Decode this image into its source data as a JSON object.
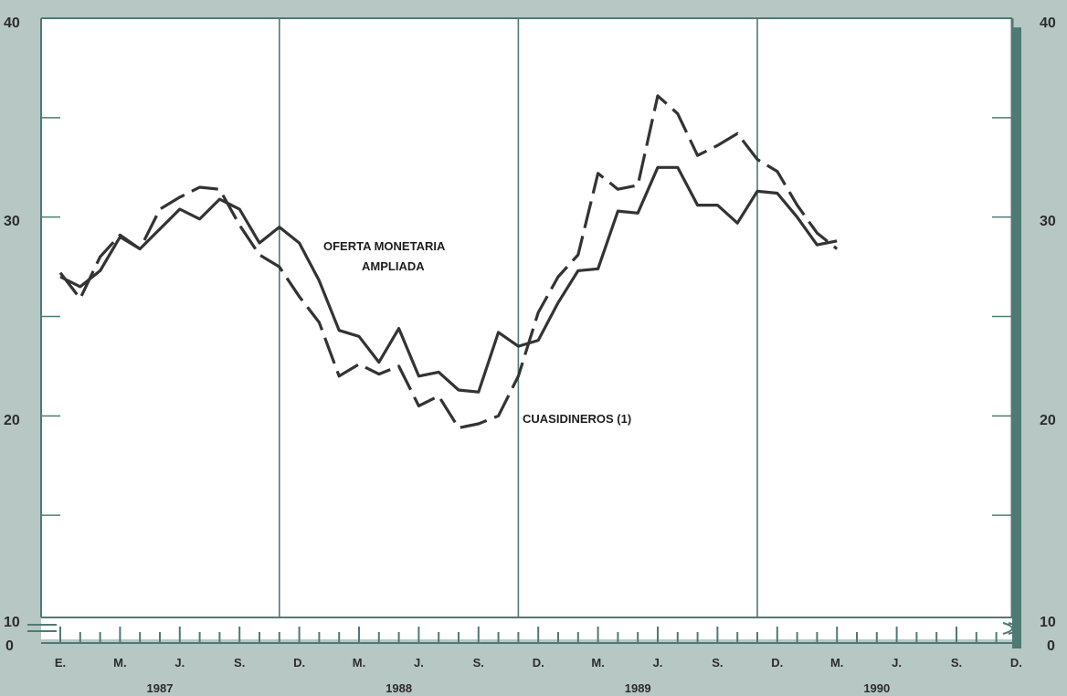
{
  "colors": {
    "page_background": "#b7c7c4",
    "plot_background": "#ffffff",
    "frame": "#4f7a74",
    "series_line": "#333333"
  },
  "chart_data": {
    "type": "line",
    "ylim": [
      10,
      40
    ],
    "y_axis_break": true,
    "y_ticks_left": [
      "10",
      "20",
      "30",
      "40"
    ],
    "y_ticks_right": [
      "10",
      "20",
      "30",
      "40"
    ],
    "y_zero_label": "0",
    "month_labels": [
      "E.",
      "M.",
      "J.",
      "S.",
      "D.",
      "M.",
      "J.",
      "S.",
      "D.",
      "M.",
      "J.",
      "S.",
      "D.",
      "M.",
      "J.",
      "S.",
      "D."
    ],
    "years": [
      "1987",
      "1988",
      "1989",
      "1990"
    ],
    "grid": "vertical lines at each December",
    "annotations": [
      {
        "text": "OFERTA MONETARIA",
        "series": "oferta"
      },
      {
        "text": "AMPLIADA",
        "series": "oferta"
      },
      {
        "text": "CUASIDINEROS (1)",
        "series": "cuasi"
      }
    ],
    "series": [
      {
        "id": "oferta",
        "style": "solid",
        "values": [
          27.0,
          26.5,
          27.3,
          29.0,
          28.4,
          29.4,
          30.4,
          29.9,
          30.9,
          30.4,
          28.7,
          29.5,
          28.7,
          26.8,
          24.3,
          24.0,
          22.7,
          24.4,
          22.0,
          22.2,
          21.3,
          21.2,
          24.2,
          23.5,
          23.8,
          25.7,
          27.3,
          27.4,
          30.3,
          30.2,
          32.5,
          32.5,
          30.6,
          30.6,
          29.7,
          31.3,
          31.2,
          30.0,
          28.6,
          28.8
        ]
      },
      {
        "id": "cuasi",
        "style": "dashed",
        "values": [
          27.2,
          25.9,
          28.0,
          29.1,
          28.4,
          30.4,
          31.0,
          31.5,
          31.4,
          29.6,
          28.1,
          27.5,
          26.0,
          24.7,
          22.0,
          22.6,
          22.1,
          22.5,
          20.5,
          21.0,
          19.4,
          19.6,
          20.0,
          22.0,
          25.2,
          27.0,
          28.1,
          32.2,
          31.4,
          31.6,
          36.1,
          35.2,
          33.1,
          33.6,
          34.2,
          32.9,
          32.3,
          30.6,
          29.2,
          28.4
        ]
      }
    ]
  }
}
